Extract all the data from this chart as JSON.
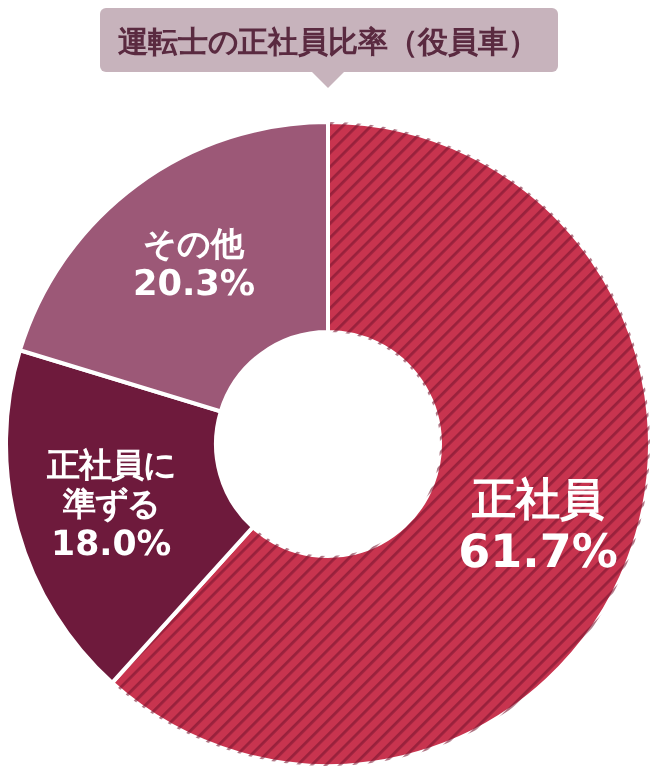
{
  "chart_data": {
    "type": "donut",
    "title": "運転士の正社員比率（役員車）",
    "categories": [
      "正社員",
      "正社員に準ずる",
      "その他"
    ],
    "values": [
      61.7,
      18.0,
      20.3
    ],
    "colors": [
      "#c8344f",
      "#6e1a3c",
      "#9c5877"
    ],
    "value_labels": [
      "61.7%",
      "18.0%",
      "20.3%"
    ]
  }
}
